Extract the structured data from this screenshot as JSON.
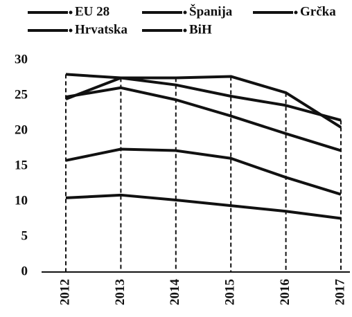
{
  "chart_data": {
    "type": "line",
    "categories": [
      "2012",
      "2013",
      "2014",
      "2015",
      "2016",
      "2017"
    ],
    "series": [
      {
        "name": "EU 28",
        "color": "#111111",
        "values": [
          10.5,
          10.9,
          10.2,
          9.4,
          8.6,
          7.6
        ]
      },
      {
        "name": "Španija",
        "color": "#111111",
        "values": [
          24.8,
          26.1,
          24.4,
          22.1,
          19.6,
          17.2
        ]
      },
      {
        "name": "Grčka",
        "color": "#111111",
        "values": [
          24.5,
          27.5,
          26.5,
          24.9,
          23.6,
          21.5
        ]
      },
      {
        "name": "Hrvatska",
        "color": "#111111",
        "values": [
          15.8,
          17.4,
          17.2,
          16.1,
          13.4,
          11.0
        ]
      },
      {
        "name": "BiH",
        "color": "#111111",
        "values": [
          28.0,
          27.5,
          27.5,
          27.7,
          25.4,
          20.5
        ]
      }
    ],
    "ylim": [
      0,
      30
    ],
    "yticks": [
      0,
      5,
      10,
      15,
      20,
      25,
      30
    ],
    "grid": false,
    "legend": "top"
  }
}
